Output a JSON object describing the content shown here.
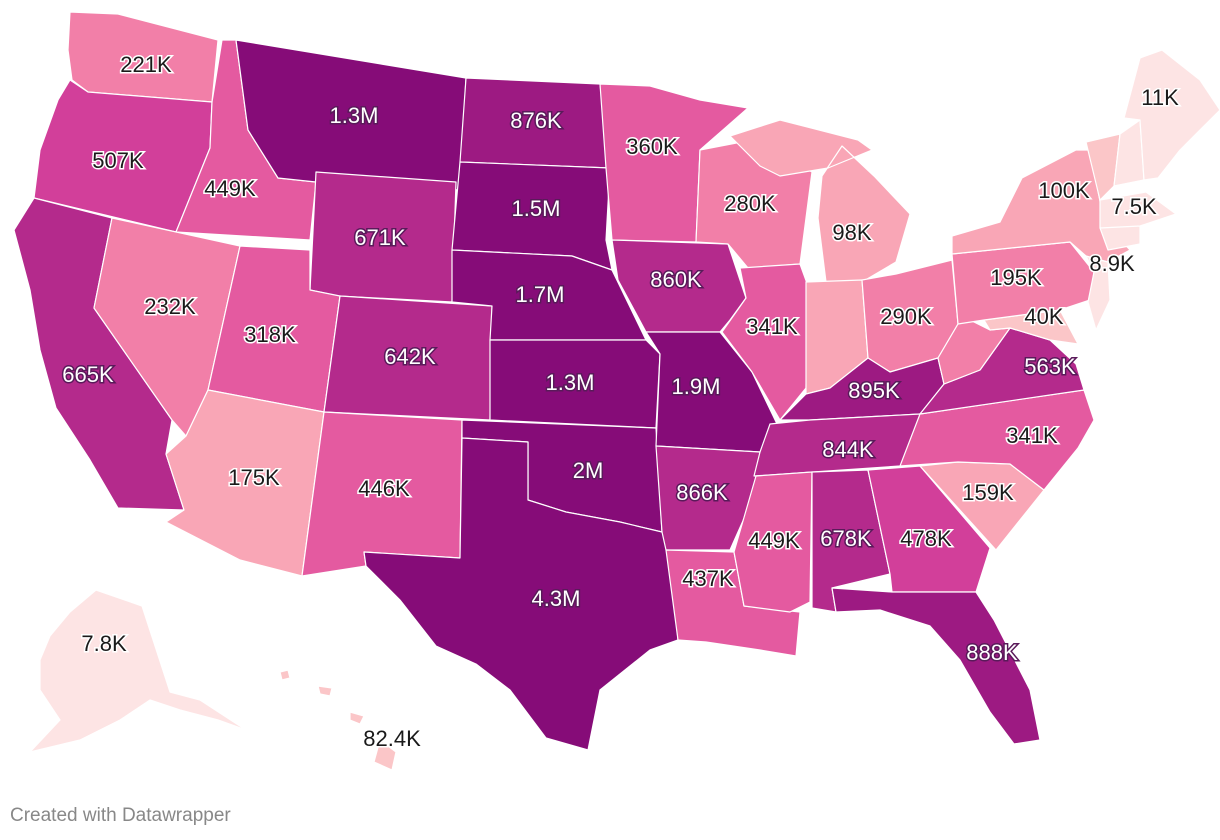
{
  "credit": "Created with Datawrapper",
  "colors": {
    "scale": [
      "#fde4e4",
      "#fbc6c8",
      "#f9a6b6",
      "#f27fa8",
      "#e45aa0",
      "#d23f9a",
      "#b42a8c",
      "#9d1a82",
      "#860c78"
    ],
    "border": "#ffffff"
  },
  "states": [
    {
      "id": "WA",
      "value_label": "221K"
    },
    {
      "id": "OR",
      "value_label": "507K"
    },
    {
      "id": "CA",
      "value_label": "665K"
    },
    {
      "id": "ID",
      "value_label": "449K"
    },
    {
      "id": "NV",
      "value_label": "232K"
    },
    {
      "id": "MT",
      "value_label": "1.3M"
    },
    {
      "id": "WY",
      "value_label": "671K"
    },
    {
      "id": "UT",
      "value_label": "318K"
    },
    {
      "id": "AZ",
      "value_label": "175K"
    },
    {
      "id": "CO",
      "value_label": "642K"
    },
    {
      "id": "NM",
      "value_label": "446K"
    },
    {
      "id": "ND",
      "value_label": "876K"
    },
    {
      "id": "SD",
      "value_label": "1.5M"
    },
    {
      "id": "NE",
      "value_label": "1.7M"
    },
    {
      "id": "KS",
      "value_label": "1.3M"
    },
    {
      "id": "OK",
      "value_label": "2M"
    },
    {
      "id": "TX",
      "value_label": "4.3M"
    },
    {
      "id": "MN",
      "value_label": "360K"
    },
    {
      "id": "IA",
      "value_label": "860K"
    },
    {
      "id": "MO",
      "value_label": "1.9M"
    },
    {
      "id": "AR",
      "value_label": "866K"
    },
    {
      "id": "LA",
      "value_label": "437K"
    },
    {
      "id": "WI",
      "value_label": "280K"
    },
    {
      "id": "IL",
      "value_label": "341K"
    },
    {
      "id": "MI",
      "value_label": "98K"
    },
    {
      "id": "IN",
      "value_label": ""
    },
    {
      "id": "OH",
      "value_label": "290K"
    },
    {
      "id": "KY",
      "value_label": "895K"
    },
    {
      "id": "TN",
      "value_label": "844K"
    },
    {
      "id": "MS",
      "value_label": "449K"
    },
    {
      "id": "AL",
      "value_label": "678K"
    },
    {
      "id": "GA",
      "value_label": "478K"
    },
    {
      "id": "FL",
      "value_label": "888K"
    },
    {
      "id": "SC",
      "value_label": "159K"
    },
    {
      "id": "NC",
      "value_label": "341K"
    },
    {
      "id": "VA",
      "value_label": "563K"
    },
    {
      "id": "WV",
      "value_label": ""
    },
    {
      "id": "MD",
      "value_label": "40K"
    },
    {
      "id": "PA",
      "value_label": "195K"
    },
    {
      "id": "NJ",
      "value_label": "8.9K"
    },
    {
      "id": "NY",
      "value_label": "100K"
    },
    {
      "id": "VT",
      "value_label": ""
    },
    {
      "id": "NH",
      "value_label": ""
    },
    {
      "id": "MA",
      "value_label": "7.5K"
    },
    {
      "id": "ME",
      "value_label": "11K"
    },
    {
      "id": "AK",
      "value_label": "7.8K"
    },
    {
      "id": "HI",
      "value_label": "82.4K"
    }
  ]
}
